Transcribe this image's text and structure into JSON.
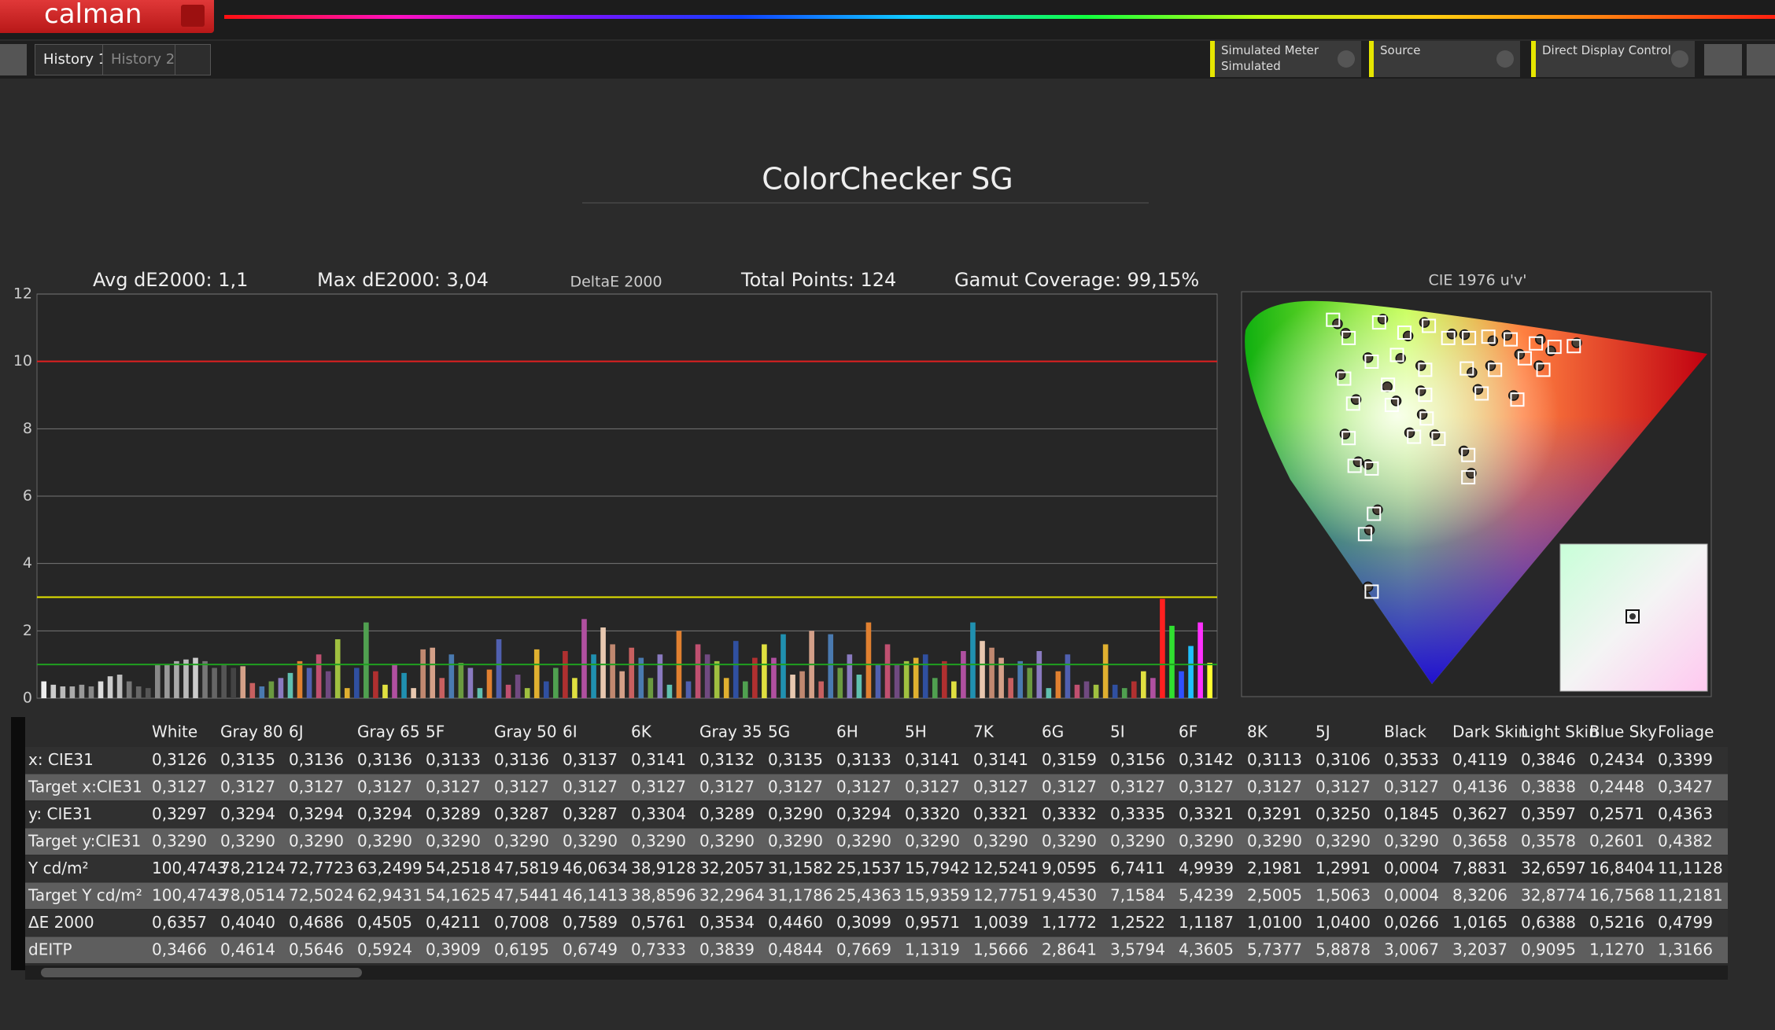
{
  "toolbar": {
    "app_name": "calman",
    "tabs": [
      "History 1",
      "History 2"
    ],
    "meter_label": "Simulated Meter",
    "meter_value": "Simulated",
    "source": "Source",
    "display": "Direct Display Control"
  },
  "page_title": "ColorChecker SG",
  "stats": [
    "Avg dE2000: 1,1",
    "Max dE2000: 3,04",
    "Total Points: 124",
    "Gamut Coverage: 99,15%"
  ],
  "chart_data": [
    {
      "type": "bar",
      "title": "DeltaE 2000",
      "ylim": [
        0,
        12
      ],
      "yticks": [
        0,
        2,
        4,
        6,
        8,
        10,
        12
      ],
      "grid": true,
      "reference_lines": [
        {
          "value": 10,
          "color": "#e02020"
        },
        {
          "value": 3,
          "color": "#e6e600"
        },
        {
          "value": 1,
          "color": "#20a020"
        }
      ],
      "values": [
        0.5,
        0.4,
        0.35,
        0.35,
        0.4,
        0.35,
        0.5,
        0.65,
        0.7,
        0.5,
        0.35,
        0.3,
        1.0,
        1.0,
        1.1,
        1.15,
        1.2,
        1.1,
        0.9,
        1.0,
        0.9,
        0.95,
        0.45,
        0.35,
        0.5,
        0.6,
        0.75,
        1.1,
        0.9,
        1.3,
        0.8,
        1.75,
        0.3,
        0.9,
        2.25,
        0.8,
        0.4,
        1.0,
        0.75,
        0.3,
        1.45,
        1.5,
        0.6,
        1.3,
        1.05,
        0.9,
        0.3,
        0.85,
        1.75,
        0.4,
        0.7,
        0.3,
        1.45,
        0.5,
        0.9,
        1.4,
        0.6,
        2.35,
        1.3,
        2.1,
        1.6,
        0.8,
        1.5,
        1.2,
        0.6,
        1.3,
        0.4,
        2.0,
        0.5,
        1.6,
        1.3,
        1.1,
        0.6,
        1.7,
        0.5,
        1.2,
        1.6,
        1.2,
        1.9,
        0.7,
        0.8,
        2.0,
        0.5,
        1.9,
        0.9,
        1.3,
        0.7,
        2.25,
        1.0,
        1.6,
        1.0,
        1.1,
        1.2,
        1.3,
        0.6,
        1.1,
        0.5,
        1.4,
        2.25,
        1.7,
        1.5,
        1.2,
        0.6,
        1.1,
        0.9,
        1.4,
        0.3,
        0.8,
        1.3,
        0.4,
        0.5,
        0.4,
        1.6,
        0.4,
        0.3,
        0.5,
        0.8,
        0.6,
        2.95,
        2.15,
        0.8,
        1.55,
        2.25,
        1.05
      ],
      "colors": [
        "#eeeeee",
        "#cccccc",
        "#bbbbbb",
        "#aaaaaa",
        "#999999",
        "#888888",
        "#dddddd",
        "#cccccc",
        "#bbbbbb",
        "#777777",
        "#666666",
        "#555555",
        "#888888",
        "#999999",
        "#aaaaaa",
        "#bbbbbb",
        "#cccccc",
        "#777777",
        "#666666",
        "#555555",
        "#444444",
        "#d4a088",
        "#c86060",
        "#4a7ab0",
        "#6a9a40",
        "#8a7ac0",
        "#60c0b0",
        "#e08030",
        "#5060b0",
        "#c05070",
        "#704a80",
        "#a0c040",
        "#e0b030",
        "#3050a0",
        "#50a050",
        "#b03030",
        "#e0e040",
        "#b050a0",
        "#2090b0",
        "#e8c8b0",
        "#c08870",
        "#d4a088",
        "#c86060",
        "#4a7ab0",
        "#6a9a40",
        "#8a7ac0",
        "#60c0b0",
        "#e08030",
        "#5060b0",
        "#c05070",
        "#704a80",
        "#a0c040",
        "#e0b030",
        "#3050a0",
        "#50a050",
        "#b03030",
        "#e0e040",
        "#b050a0",
        "#2090b0",
        "#e8c8b0",
        "#c08870",
        "#d4a088",
        "#c86060",
        "#4a7ab0",
        "#6a9a40",
        "#8a7ac0",
        "#60c0b0",
        "#e08030",
        "#5060b0",
        "#c05070",
        "#704a80",
        "#a0c040",
        "#e0b030",
        "#3050a0",
        "#50a050",
        "#b03030",
        "#e0e040",
        "#b050a0",
        "#2090b0",
        "#e8c8b0",
        "#c08870",
        "#d4a088",
        "#c86060",
        "#4a7ab0",
        "#6a9a40",
        "#8a7ac0",
        "#60c0b0",
        "#e08030",
        "#5060b0",
        "#c05070",
        "#704a80",
        "#a0c040",
        "#e0b030",
        "#3050a0",
        "#50a050",
        "#b03030",
        "#e0e040",
        "#b050a0",
        "#2090b0",
        "#e8c8b0",
        "#c08870",
        "#d4a088",
        "#c86060",
        "#4a7ab0",
        "#6a9a40",
        "#8a7ac0",
        "#60c0b0",
        "#e08030",
        "#5060b0",
        "#c05070",
        "#704a80",
        "#a0c040",
        "#e0b030",
        "#3050a0",
        "#50a050",
        "#b03030",
        "#e0e040",
        "#b050a0",
        "#ff2020",
        "#30e030",
        "#3050ff",
        "#20c0ff",
        "#ff30ff",
        "#ffff30"
      ]
    },
    {
      "type": "scatter",
      "title": "CIE 1976 u'v'",
      "xlim": [
        0,
        0.63
      ],
      "ylim": [
        0,
        0.6
      ],
      "series": [
        {
          "marker": "square",
          "color": "#ffffff",
          "x": [
            0.121,
            0.142,
            0.183,
            0.217,
            0.25,
            0.276,
            0.304,
            0.33,
            0.36,
            0.394,
            0.419,
            0.445,
            0.379,
            0.404,
            0.339,
            0.301,
            0.245,
            0.207,
            0.173,
            0.195,
            0.136,
            0.148,
            0.2,
            0.245,
            0.321,
            0.369,
            0.23,
            0.263,
            0.303,
            0.303,
            0.247,
            0.142,
            0.15,
            0.173,
            0.176,
            0.164,
            0.173
          ],
          "values": [
            0.555,
            0.528,
            0.551,
            0.536,
            0.546,
            0.528,
            0.528,
            0.53,
            0.526,
            0.52,
            0.515,
            0.516,
            0.498,
            0.481,
            0.481,
            0.483,
            0.481,
            0.503,
            0.493,
            0.459,
            0.468,
            0.431,
            0.429,
            0.444,
            0.446,
            0.437,
            0.382,
            0.379,
            0.355,
            0.322,
            0.409,
            0.38,
            0.339,
            0.335,
            0.268,
            0.238,
            0.153
          ]
        },
        {
          "marker": "circle",
          "color": "#4a4036",
          "x": [
            0.127,
            0.138,
            0.188,
            0.222,
            0.244,
            0.281,
            0.298,
            0.336,
            0.355,
            0.4,
            0.414,
            0.449,
            0.372,
            0.398,
            0.333,
            0.308,
            0.239,
            0.212,
            0.168,
            0.194,
            0.131,
            0.152,
            0.206,
            0.239,
            0.316,
            0.364,
            0.224,
            0.258,
            0.297,
            0.307,
            0.241,
            0.137,
            0.155,
            0.168,
            0.181,
            0.17,
            0.168
          ],
          "values": [
            0.549,
            0.535,
            0.556,
            0.531,
            0.551,
            0.534,
            0.533,
            0.524,
            0.532,
            0.526,
            0.509,
            0.521,
            0.504,
            0.487,
            0.487,
            0.477,
            0.487,
            0.498,
            0.499,
            0.456,
            0.474,
            0.437,
            0.435,
            0.45,
            0.452,
            0.443,
            0.388,
            0.385,
            0.361,
            0.328,
            0.415,
            0.386,
            0.345,
            0.341,
            0.274,
            0.244,
            0.16
          ]
        }
      ]
    }
  ],
  "table": {
    "header": [
      "White",
      "Gray 80",
      "6J",
      "Gray 65",
      "5F",
      "Gray 50",
      "6I",
      "6K",
      "Gray 35",
      "5G",
      "6H",
      "5H",
      "7K",
      "6G",
      "5I",
      "6F",
      "8K",
      "5J",
      "Black",
      "Dark Skin",
      "Light Skin",
      "Blue Sky",
      "Foliage"
    ],
    "rows": [
      {
        "label": "x: CIE31",
        "cells": [
          "0,3126",
          "0,3135",
          "0,3136",
          "0,3136",
          "0,3133",
          "0,3136",
          "0,3137",
          "0,3141",
          "0,3132",
          "0,3135",
          "0,3133",
          "0,3141",
          "0,3141",
          "0,3159",
          "0,3156",
          "0,3142",
          "0,3113",
          "0,3106",
          "0,3533",
          "0,4119",
          "0,3846",
          "0,2434",
          "0,3399"
        ]
      },
      {
        "label": "Target x:CIE31",
        "cells": [
          "0,3127",
          "0,3127",
          "0,3127",
          "0,3127",
          "0,3127",
          "0,3127",
          "0,3127",
          "0,3127",
          "0,3127",
          "0,3127",
          "0,3127",
          "0,3127",
          "0,3127",
          "0,3127",
          "0,3127",
          "0,3127",
          "0,3127",
          "0,3127",
          "0,3127",
          "0,4136",
          "0,3838",
          "0,2448",
          "0,3427"
        ]
      },
      {
        "label": "y: CIE31",
        "cells": [
          "0,3297",
          "0,3294",
          "0,3294",
          "0,3294",
          "0,3289",
          "0,3287",
          "0,3287",
          "0,3304",
          "0,3289",
          "0,3290",
          "0,3294",
          "0,3320",
          "0,3321",
          "0,3332",
          "0,3335",
          "0,3321",
          "0,3291",
          "0,3250",
          "0,1845",
          "0,3627",
          "0,3597",
          "0,2571",
          "0,4363"
        ]
      },
      {
        "label": "Target y:CIE31",
        "cells": [
          "0,3290",
          "0,3290",
          "0,3290",
          "0,3290",
          "0,3290",
          "0,3290",
          "0,3290",
          "0,3290",
          "0,3290",
          "0,3290",
          "0,3290",
          "0,3290",
          "0,3290",
          "0,3290",
          "0,3290",
          "0,3290",
          "0,3290",
          "0,3290",
          "0,3290",
          "0,3658",
          "0,3578",
          "0,2601",
          "0,4382"
        ]
      },
      {
        "label": "Y cd/m²",
        "cells": [
          "100,4743",
          "78,2124",
          "72,7723",
          "63,2499",
          "54,2518",
          "47,5819",
          "46,0634",
          "38,9128",
          "32,2057",
          "31,1582",
          "25,1537",
          "15,7942",
          "12,5241",
          "9,0595",
          "6,7411",
          "4,9939",
          "2,1981",
          "1,2991",
          "0,0004",
          "7,8831",
          "32,6597",
          "16,8404",
          "11,1128"
        ]
      },
      {
        "label": "Target Y cd/m²",
        "cells": [
          "100,4743",
          "78,0514",
          "72,5024",
          "62,9431",
          "54,1625",
          "47,5441",
          "46,1413",
          "38,8596",
          "32,2964",
          "31,1786",
          "25,4363",
          "15,9359",
          "12,7751",
          "9,4530",
          "7,1584",
          "5,4239",
          "2,5005",
          "1,5063",
          "0,0004",
          "8,3206",
          "32,8774",
          "16,7568",
          "11,2181"
        ]
      },
      {
        "label": "ΔE 2000",
        "cells": [
          "0,6357",
          "0,4040",
          "0,4686",
          "0,4505",
          "0,4211",
          "0,7008",
          "0,7589",
          "0,5761",
          "0,3534",
          "0,4460",
          "0,3099",
          "0,9571",
          "1,0039",
          "1,1772",
          "1,2522",
          "1,1187",
          "1,0100",
          "1,0400",
          "0,0266",
          "1,0165",
          "0,6388",
          "0,5216",
          "0,4799"
        ]
      },
      {
        "label": "dEITP",
        "cells": [
          "0,3466",
          "0,4614",
          "0,5646",
          "0,5924",
          "0,3909",
          "0,6195",
          "0,6749",
          "0,7333",
          "0,3839",
          "0,4844",
          "0,7669",
          "1,1319",
          "1,5666",
          "2,8641",
          "3,5794",
          "4,3605",
          "5,7377",
          "5,8878",
          "3,0067",
          "3,2037",
          "0,9095",
          "1,1270",
          "1,3166"
        ]
      }
    ]
  }
}
